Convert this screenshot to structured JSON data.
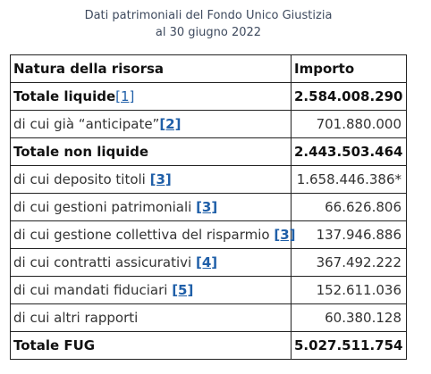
{
  "caption": {
    "line1": "Dati patrimoniali del Fondo Unico Giustizia",
    "line2": "al 30 giugno 2022"
  },
  "table": {
    "headers": {
      "nature": "Natura della risorsa",
      "amount": "Importo"
    },
    "rows": [
      {
        "label": "Totale liquide",
        "ref": "[1]",
        "amount": "2.584.008.290",
        "bold": true
      },
      {
        "label": "di cui già “anticipate”",
        "ref": "[2]",
        "amount": "701.880.000",
        "bold": false
      },
      {
        "label": "Totale non liquide",
        "ref": "",
        "amount": "2.443.503.464",
        "bold": true
      },
      {
        "label": "di cui deposito titoli ",
        "ref": "[3]",
        "amount": "1.658.446.386*",
        "bold": false
      },
      {
        "label": "di cui gestioni patrimoniali ",
        "ref": "[3]",
        "amount": "66.626.806",
        "bold": false
      },
      {
        "label": "di cui gestione collettiva del risparmio ",
        "ref": "[3]",
        "amount": "137.946.886",
        "bold": false
      },
      {
        "label": "di cui contratti assicurativi ",
        "ref": "[4]",
        "amount": "367.492.222",
        "bold": false
      },
      {
        "label": "di cui mandati fiduciari ",
        "ref": "[5]",
        "amount": "152.611.036",
        "bold": false
      },
      {
        "label": "di cui altri rapporti",
        "ref": "",
        "amount": "60.380.128",
        "bold": false
      },
      {
        "label": "Totale FUG",
        "ref": "",
        "amount": "5.027.511.754",
        "bold": true
      }
    ]
  }
}
